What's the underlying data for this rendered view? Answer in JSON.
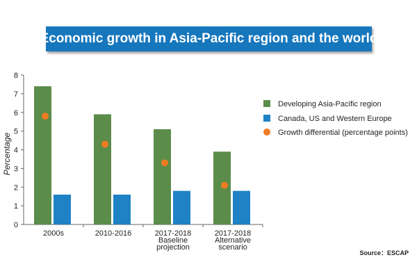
{
  "title": "Economic growth in Asia-Pacific region and the world",
  "source": "Source：ESCAP",
  "colors": {
    "banner": "#1677bd",
    "green": "#5b8c4a",
    "blue": "#1f82c4",
    "orange": "#ef7c22"
  },
  "chart_data": {
    "type": "bar",
    "title": "Economic growth in Asia-Pacific region and the world",
    "ylabel": "Percentage",
    "xlabel": "",
    "ylim": [
      0,
      8
    ],
    "yticks": [
      0,
      1,
      2,
      3,
      4,
      5,
      6,
      7,
      8
    ],
    "categories": [
      [
        "2000s"
      ],
      [
        "2010-2016"
      ],
      [
        "2017-2018",
        "Baseline",
        "projection"
      ],
      [
        "2017-2018",
        "Alternative",
        "scenario"
      ]
    ],
    "series": [
      {
        "name": "Developing Asia-Pacific region",
        "kind": "bar",
        "color": "#5b8c4a",
        "values": [
          7.4,
          5.9,
          5.1,
          3.9
        ]
      },
      {
        "name": "Canada, US and Western Europe",
        "kind": "bar",
        "color": "#1f82c4",
        "values": [
          1.6,
          1.6,
          1.8,
          1.8
        ]
      },
      {
        "name": "Growth differential (percentage points)",
        "kind": "point",
        "color": "#ef7c22",
        "values": [
          5.8,
          4.3,
          3.3,
          2.1
        ]
      }
    ],
    "legend_position": "right",
    "grid": false
  }
}
